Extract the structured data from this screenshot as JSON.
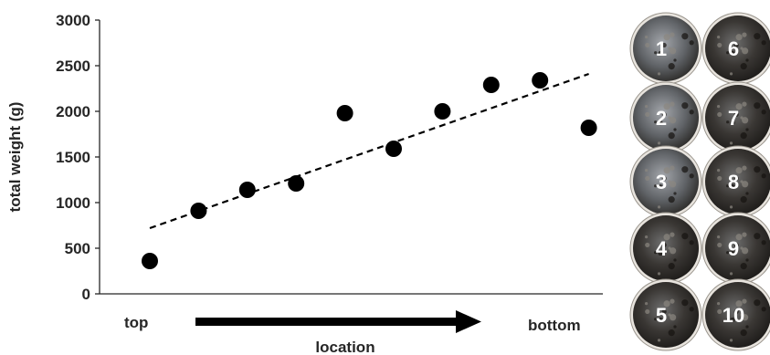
{
  "chart_data": {
    "type": "scatter",
    "title": "",
    "ylabel": "total weight (g)",
    "xlabel": "location",
    "x_start_label": "top",
    "x_end_label": "bottom",
    "x": [
      1,
      2,
      3,
      4,
      5,
      6,
      7,
      8,
      9,
      10
    ],
    "y": [
      360,
      910,
      1140,
      1210,
      1980,
      1590,
      2000,
      2290,
      2340,
      1820
    ],
    "ylim": [
      0,
      3000
    ],
    "yticks": [
      "0",
      "500",
      "1000",
      "1500",
      "2000",
      "2500",
      "3000"
    ],
    "trendline": {
      "style": "dashed",
      "y_at_x1": 720,
      "y_at_x10": 2410
    },
    "grid": false,
    "legend": "none",
    "marker_color": "#000000"
  },
  "sample_images": {
    "labels": [
      "1",
      "2",
      "3",
      "4",
      "5",
      "6",
      "7",
      "8",
      "9",
      "10"
    ]
  }
}
